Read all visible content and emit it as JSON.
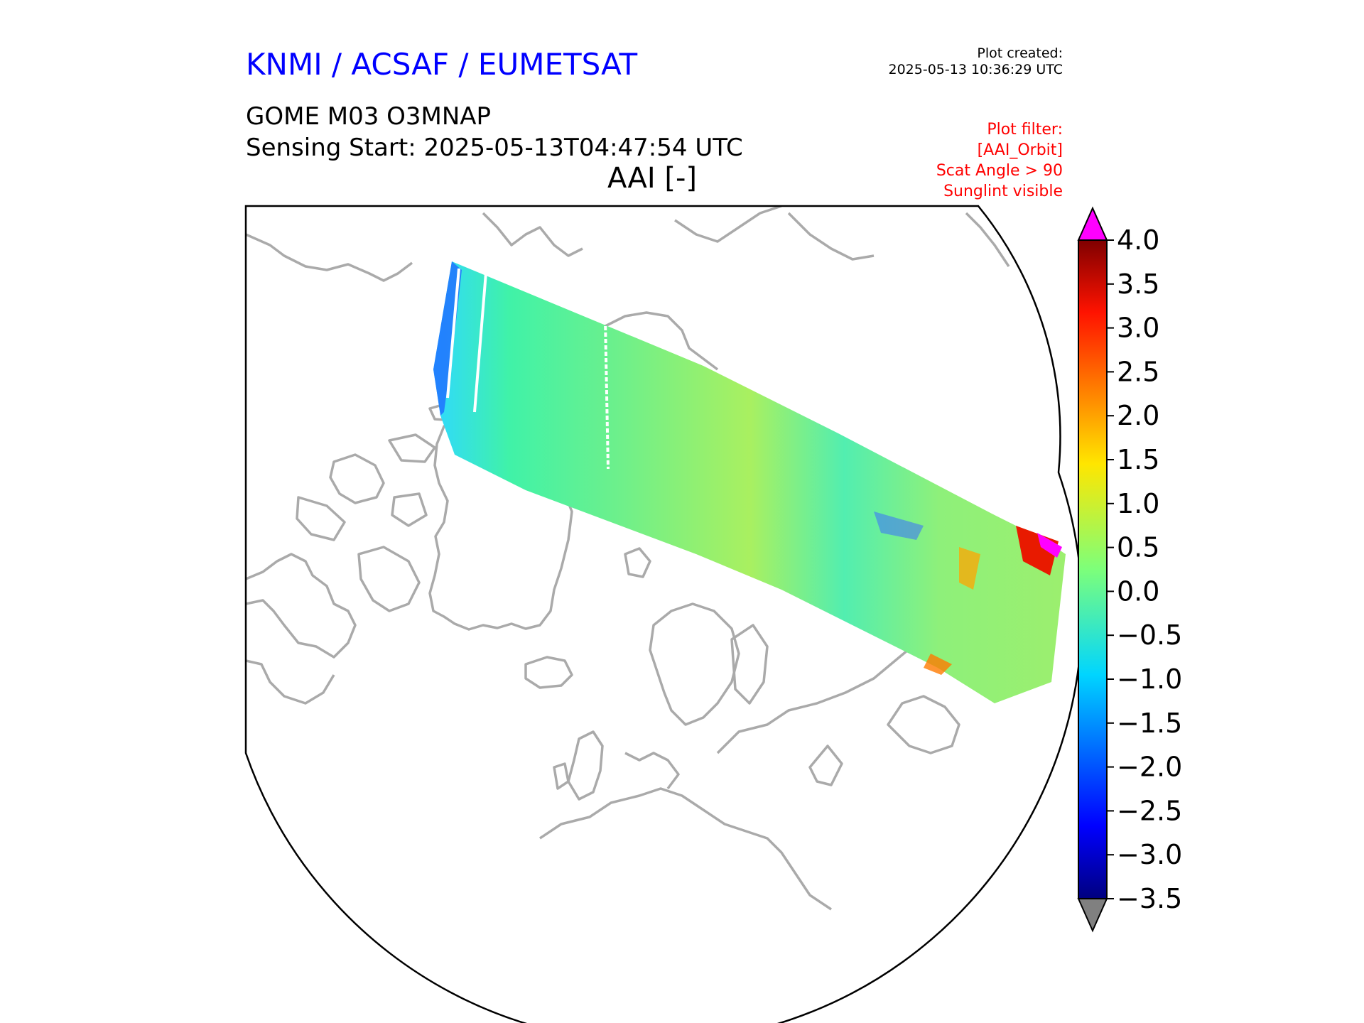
{
  "header": {
    "organisation": "KNMI / ACSAF / EUMETSAT",
    "plot_created_label": "Plot created:",
    "plot_created_time": "2025-05-13 10:36:29 UTC",
    "product": "GOME M03 O3MNAP",
    "sensing_start": "Sensing Start: 2025-05-13T04:47:54 UTC",
    "map_title": "AAI [-]"
  },
  "filter": {
    "label": "Plot filter:",
    "lines": [
      "[AAI_Orbit]",
      "Scat Angle > 90",
      "Sunglint visible"
    ]
  },
  "colorbar": {
    "min": -3.5,
    "max": 4.0,
    "tick_labels": [
      "4.0",
      "3.5",
      "3.0",
      "2.5",
      "2.0",
      "1.5",
      "1.0",
      "0.5",
      "0.0",
      "−0.5",
      "−1.0",
      "−1.5",
      "−2.0",
      "−2.5",
      "−3.0",
      "−3.5"
    ],
    "tick_values": [
      4.0,
      3.5,
      3.0,
      2.5,
      2.0,
      1.5,
      1.0,
      0.5,
      0.0,
      -0.5,
      -1.0,
      -1.5,
      -2.0,
      -2.5,
      -3.0,
      -3.5
    ],
    "over_color": "#ff00ff",
    "under_color": "#808080",
    "colormap": "jet"
  },
  "colors": {
    "coastline": "#aaaaaa",
    "frame": "#000000",
    "swath_dominant": "#3ff5b0"
  }
}
